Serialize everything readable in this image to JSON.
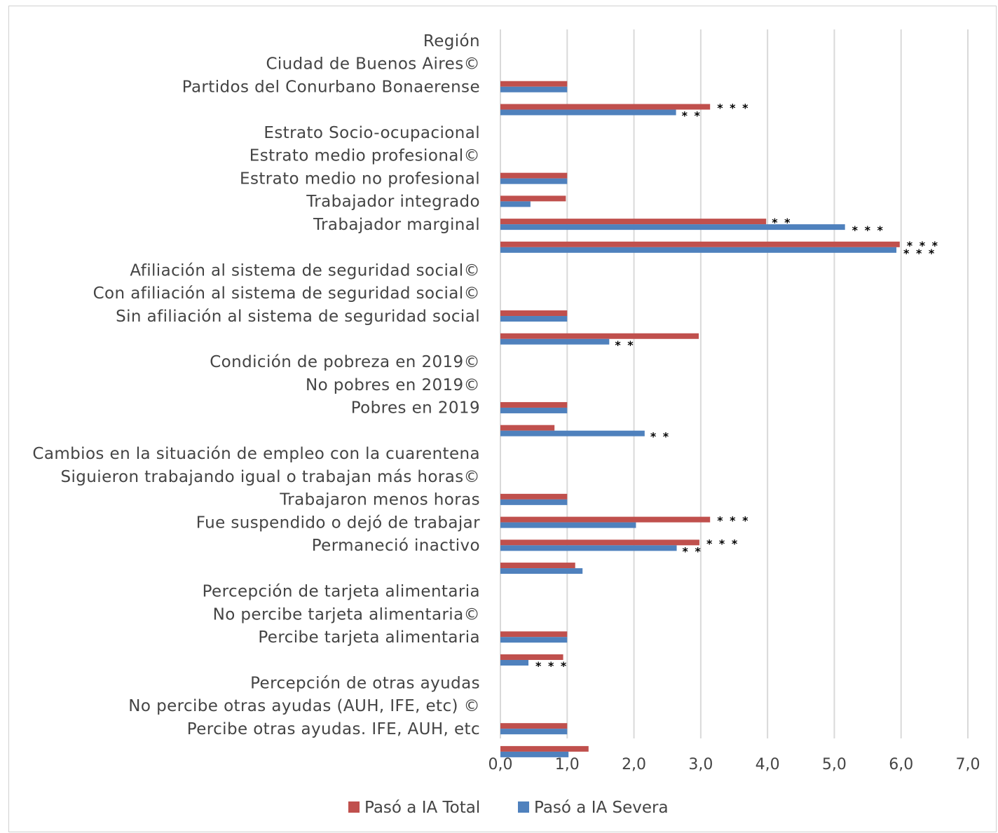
{
  "chart_data": {
    "type": "bar",
    "orientation": "horizontal",
    "title": "",
    "xlabel": "",
    "ylabel": "",
    "xlim": [
      0,
      7
    ],
    "x_ticks": [
      "0,0",
      "1,0",
      "2,0",
      "3,0",
      "4,0",
      "5,0",
      "6,0",
      "7,0"
    ],
    "grid": true,
    "legend_position": "bottom",
    "categories": [
      "Región",
      "Ciudad de Buenos Aires©",
      "Partidos del Conurbano Bonaerense",
      "",
      "Estrato Socio-ocupacional",
      "Estrato medio profesional©",
      "Estrato medio no profesional",
      "Trabajador integrado",
      "Trabajador marginal",
      "",
      "Afiliación al sistema de seguridad social©",
      "Con afiliación al sistema de seguridad social©",
      "Sin afiliación al sistema de seguridad social",
      "",
      "Condición de pobreza en 2019©",
      "No pobres en 2019©",
      "Pobres en 2019",
      "",
      "Cambios en la situación de empleo con la cuarentena",
      "Siguieron trabajando igual o trabajan más horas©",
      "Trabajaron menos horas",
      "Fue suspendido o dejó de trabajar",
      "Permaneció inactivo",
      "",
      "Percepción de tarjeta alimentaria",
      "No percibe tarjeta alimentaria©",
      "Percibe tarjeta alimentaria",
      "",
      "Percepción de otras ayudas",
      "No percibe otras ayudas (AUH, IFE, etc) ©",
      "Percibe otras ayudas. IFE, AUH, etc"
    ],
    "series": [
      {
        "name": "Pasó a IA Total",
        "color": "#c0504d",
        "values": [
          null,
          1.0,
          3.14,
          null,
          null,
          1.0,
          0.98,
          3.98,
          5.98,
          null,
          null,
          1.0,
          2.97,
          null,
          null,
          1.0,
          0.81,
          null,
          null,
          1.0,
          3.14,
          2.98,
          1.12,
          null,
          null,
          1.0,
          0.94,
          null,
          null,
          1.0,
          1.32
        ],
        "significance": [
          null,
          null,
          "***",
          null,
          null,
          null,
          null,
          "**",
          "***",
          null,
          null,
          null,
          null,
          null,
          null,
          null,
          null,
          null,
          null,
          null,
          "***",
          "***",
          null,
          null,
          null,
          null,
          null,
          null,
          null,
          null,
          null
        ]
      },
      {
        "name": "Pasó a IA Severa",
        "color": "#4f81bd",
        "values": [
          null,
          1.0,
          2.63,
          null,
          null,
          1.0,
          0.45,
          5.16,
          5.93,
          null,
          null,
          1.0,
          1.63,
          null,
          null,
          1.0,
          2.16,
          null,
          null,
          1.0,
          2.03,
          2.64,
          1.23,
          null,
          null,
          1.0,
          0.42,
          null,
          null,
          1.0,
          1.02
        ],
        "significance": [
          null,
          null,
          "**",
          null,
          null,
          null,
          null,
          "***",
          "***",
          null,
          null,
          null,
          "**",
          null,
          null,
          null,
          "**",
          null,
          null,
          null,
          null,
          "**",
          null,
          null,
          null,
          null,
          "***",
          null,
          null,
          null,
          null
        ]
      }
    ]
  }
}
